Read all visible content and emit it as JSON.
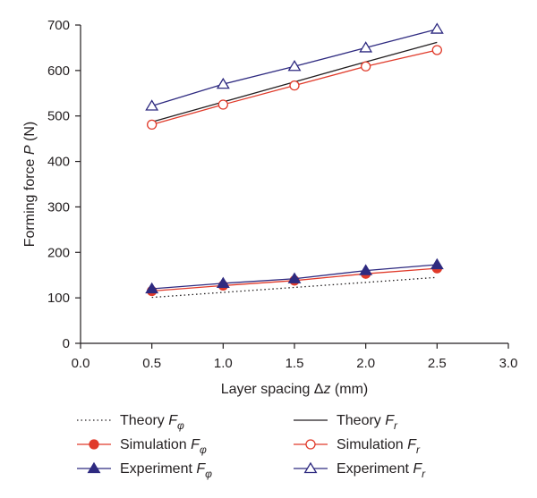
{
  "chart_data": {
    "type": "line",
    "xlabel": {
      "text": "Layer spacing ",
      "symbol": "Δz",
      "unit": " (mm)"
    },
    "ylabel": {
      "text": "Forming force ",
      "symbol": "P",
      "unit": " (N)"
    },
    "xlim": [
      0.0,
      3.0
    ],
    "ylim": [
      0,
      700
    ],
    "xticks": [
      "0.0",
      "0.5",
      "1.0",
      "1.5",
      "2.0",
      "2.5",
      "3.0"
    ],
    "yticks": [
      "0",
      "100",
      "200",
      "300",
      "400",
      "500",
      "600",
      "700"
    ],
    "x": [
      0.5,
      1.0,
      1.5,
      2.0,
      2.5
    ],
    "series": [
      {
        "label": "Theory",
        "symbol": "F",
        "subscript": "φ",
        "values": [
          101,
          112,
          123,
          134,
          145
        ],
        "color": "#231f20",
        "style": "dotted",
        "marker": "none"
      },
      {
        "label": "Simulation",
        "symbol": "F",
        "subscript": "φ",
        "values": [
          115,
          127,
          138,
          153,
          165
        ],
        "color": "#e03a2a",
        "style": "solid",
        "marker": "filled-circle"
      },
      {
        "label": "Experiment",
        "symbol": "F",
        "subscript": "φ",
        "values": [
          120,
          132,
          142,
          160,
          173
        ],
        "color": "#2e2a80",
        "style": "solid",
        "marker": "filled-triangle"
      },
      {
        "label": "Theory",
        "symbol": "F",
        "subscript": "r",
        "values": [
          487,
          531,
          575,
          619,
          662
        ],
        "color": "#231f20",
        "style": "solid",
        "marker": "none"
      },
      {
        "label": "Simulation",
        "symbol": "F",
        "subscript": "r",
        "values": [
          481,
          525,
          567,
          609,
          645
        ],
        "color": "#e03a2a",
        "style": "solid",
        "marker": "open-circle"
      },
      {
        "label": "Experiment",
        "symbol": "F",
        "subscript": "r",
        "values": [
          522,
          570,
          609,
          650,
          691
        ],
        "color": "#2e2a80",
        "style": "solid",
        "marker": "open-triangle"
      }
    ],
    "grid": false,
    "legend_position": "bottom"
  }
}
